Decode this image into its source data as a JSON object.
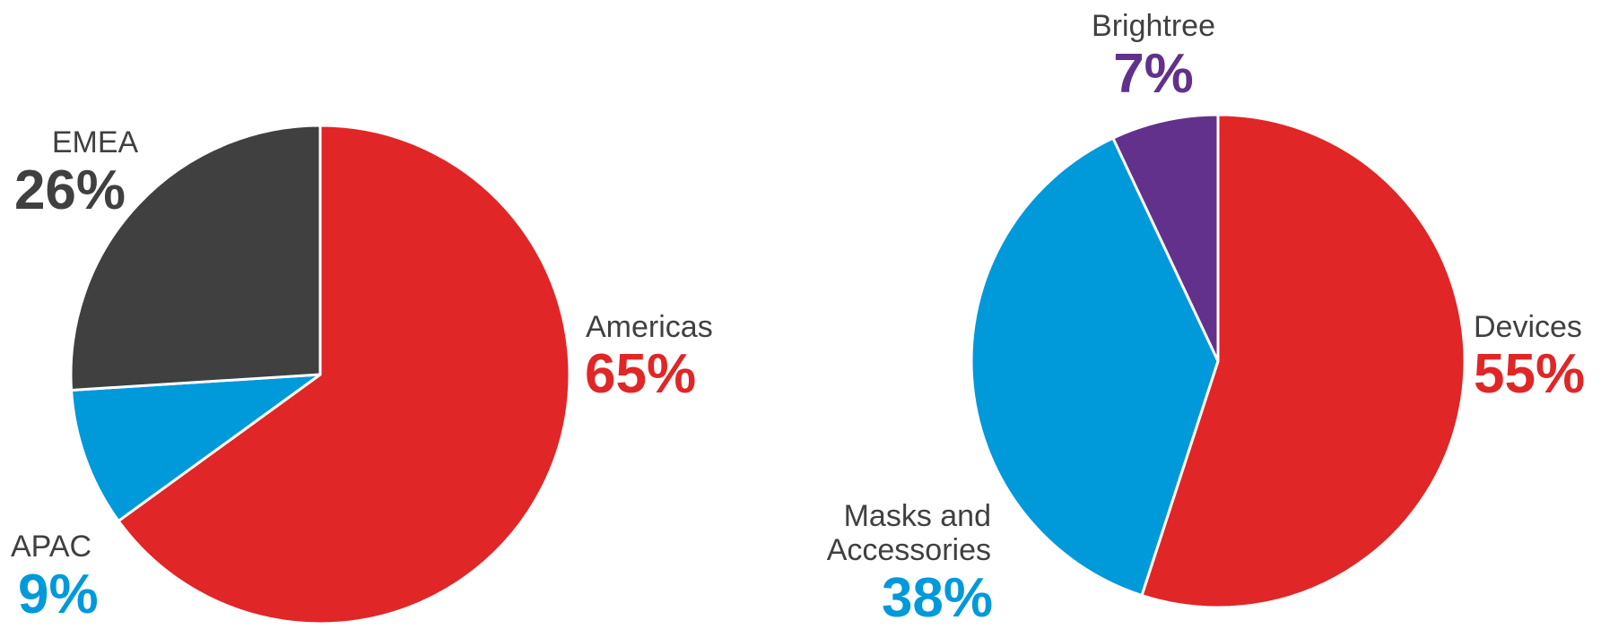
{
  "chart_data": [
    {
      "type": "pie",
      "slices": [
        {
          "label": "Americas",
          "value": 65,
          "value_label": "65%",
          "color": "#e02626"
        },
        {
          "label": "APAC",
          "value": 9,
          "value_label": "9%",
          "color": "#0099da"
        },
        {
          "label": "EMEA",
          "value": 26,
          "value_label": "26%",
          "color": "#404040"
        }
      ]
    },
    {
      "type": "pie",
      "slices": [
        {
          "label": "Devices",
          "value": 55,
          "value_label": "55%",
          "color": "#e02626"
        },
        {
          "label": "Masks and Accessories",
          "value": 38,
          "value_label": "38%",
          "color": "#0099da"
        },
        {
          "label": "Brightree",
          "value": 7,
          "value_label": "7%",
          "color": "#62318c"
        }
      ]
    }
  ]
}
